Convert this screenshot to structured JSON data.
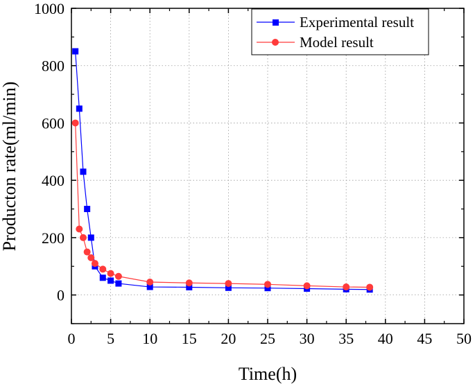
{
  "chart_data": {
    "type": "line",
    "title": "",
    "xlabel": "Time(h)",
    "ylabel": "Producton rate(ml/min)",
    "xlim": [
      0,
      50
    ],
    "ylim": [
      -100,
      1000
    ],
    "xticks": [
      0,
      5,
      10,
      15,
      20,
      25,
      30,
      35,
      40,
      45,
      50
    ],
    "yticks": [
      0,
      200,
      400,
      600,
      800,
      1000
    ],
    "grid": true,
    "legend_position": "top-right",
    "series": [
      {
        "name": "Experimental result",
        "color": "#0000ff",
        "marker": "square",
        "x": [
          0.5,
          1,
          1.5,
          2,
          2.5,
          3,
          4,
          5,
          6,
          10,
          15,
          20,
          25,
          30,
          35,
          38
        ],
        "y": [
          850,
          650,
          430,
          300,
          200,
          100,
          60,
          50,
          40,
          28,
          27,
          25,
          24,
          22,
          20,
          19
        ]
      },
      {
        "name": "Model result",
        "color": "#ff3b3b",
        "marker": "circle",
        "x": [
          0.5,
          1,
          1.5,
          2,
          2.5,
          3,
          4,
          5,
          6,
          10,
          15,
          20,
          25,
          30,
          35,
          38
        ],
        "y": [
          600,
          230,
          200,
          150,
          130,
          110,
          90,
          75,
          65,
          45,
          42,
          40,
          37,
          32,
          28,
          27
        ]
      }
    ]
  }
}
